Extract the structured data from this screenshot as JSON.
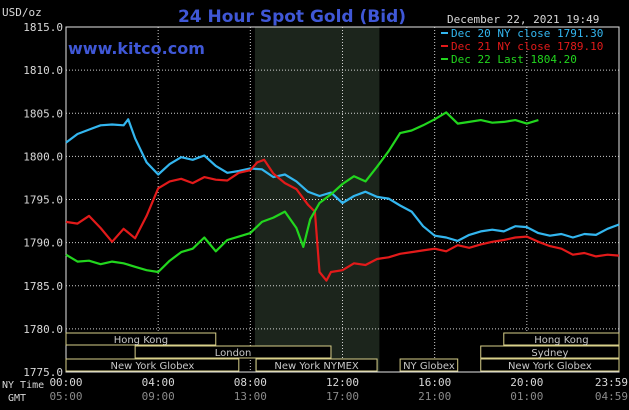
{
  "header": {
    "unit_label": "USD/oz",
    "title": "24 Hour Spot Gold (Bid)",
    "timestamp": "December 22, 2021 19:49",
    "site": "www.kitco.com"
  },
  "colors": {
    "background": "#000000",
    "title": "#3f57d6",
    "site": "#3f57d6",
    "text": "#d8d8d8",
    "grid": "#e6e6e6",
    "shade": "#1c251c",
    "session_box": "#d9d08a",
    "session_text": "#c8c8c8"
  },
  "legend": [
    {
      "label": "Dec 20 NY close 1791.30",
      "color": "#33b6ef"
    },
    {
      "label": "Dec 21 NY close 1789.10",
      "color": "#e21a1a"
    },
    {
      "label": "Dec 22 Last 1804.20",
      "color": "#22d61e"
    }
  ],
  "axis_labels": {
    "ny_time": "NY Time",
    "gmt": "GMT"
  },
  "sessions": [
    {
      "label": "Hong Kong",
      "start": -1,
      "end": 6.5,
      "row": 0
    },
    {
      "label": "London",
      "start": 3,
      "end": 11.5,
      "row": 1
    },
    {
      "label": "New York Globex",
      "start": -1,
      "end": 7.5,
      "row": 2
    },
    {
      "label": "New York NYMEX",
      "start": 8.25,
      "end": 13.5,
      "row": 2
    },
    {
      "label": "NY Globex",
      "start": 14.5,
      "end": 17,
      "row": 2
    },
    {
      "label": "Hong Kong",
      "start": 19,
      "end": 24.5,
      "row": 0
    },
    {
      "label": "Sydney",
      "start": 18,
      "end": 24.5,
      "row": 1
    },
    {
      "label": "New York Globex",
      "start": 18,
      "end": 24.5,
      "row": 2
    }
  ],
  "chart_data": {
    "type": "line",
    "title": "24 Hour Spot Gold (Bid)",
    "ylabel": "USD/oz",
    "xlim": [
      0,
      24
    ],
    "ylim": [
      1775,
      1815
    ],
    "shaded_range": [
      8.2,
      13.6
    ],
    "x_ticks": [
      {
        "x": 0,
        "ny": "00:00",
        "gmt": "05:00"
      },
      {
        "x": 4,
        "ny": "04:00",
        "gmt": "09:00"
      },
      {
        "x": 8,
        "ny": "08:00",
        "gmt": "13:00"
      },
      {
        "x": 12,
        "ny": "12:00",
        "gmt": "17:00"
      },
      {
        "x": 16,
        "ny": "16:00",
        "gmt": "21:00"
      },
      {
        "x": 20,
        "ny": "20:00",
        "gmt": "01:00"
      },
      {
        "x": 24,
        "ny": "23:59",
        "gmt": "04:59"
      }
    ],
    "y_ticks": [
      "1775.0",
      "1780.0",
      "1785.0",
      "1790.0",
      "1795.0",
      "1800.0",
      "1805.0",
      "1810.0",
      "1815.0"
    ],
    "series": [
      {
        "name": "Dec 20 NY close 1791.30",
        "color": "#33b6ef",
        "points": [
          [
            0,
            1801.6
          ],
          [
            0.5,
            1802.6
          ],
          [
            1,
            1803.1
          ],
          [
            1.5,
            1803.6
          ],
          [
            2,
            1803.7
          ],
          [
            2.5,
            1803.6
          ],
          [
            2.7,
            1804.3
          ],
          [
            3,
            1802.1
          ],
          [
            3.5,
            1799.3
          ],
          [
            4,
            1797.9
          ],
          [
            4.5,
            1799.1
          ],
          [
            5,
            1799.9
          ],
          [
            5.5,
            1799.6
          ],
          [
            6,
            1800.1
          ],
          [
            6.5,
            1798.9
          ],
          [
            7,
            1798.1
          ],
          [
            7.5,
            1798.3
          ],
          [
            8,
            1798.6
          ],
          [
            8.5,
            1798.5
          ],
          [
            9,
            1797.6
          ],
          [
            9.5,
            1797.9
          ],
          [
            10,
            1797.1
          ],
          [
            10.5,
            1795.9
          ],
          [
            11,
            1795.4
          ],
          [
            11.5,
            1795.8
          ],
          [
            12,
            1794.6
          ],
          [
            12.5,
            1795.4
          ],
          [
            13,
            1795.9
          ],
          [
            13.5,
            1795.3
          ],
          [
            14,
            1795.1
          ],
          [
            14.5,
            1794.3
          ],
          [
            15,
            1793.6
          ],
          [
            15.5,
            1791.9
          ],
          [
            16,
            1790.8
          ],
          [
            16.5,
            1790.6
          ],
          [
            17,
            1790.2
          ],
          [
            17.5,
            1790.9
          ],
          [
            18,
            1791.3
          ],
          [
            18.5,
            1791.5
          ],
          [
            19,
            1791.3
          ],
          [
            19.5,
            1791.9
          ],
          [
            20,
            1791.8
          ],
          [
            20.5,
            1791.1
          ],
          [
            21,
            1790.8
          ],
          [
            21.5,
            1791.0
          ],
          [
            22,
            1790.6
          ],
          [
            22.5,
            1791.0
          ],
          [
            23,
            1790.9
          ],
          [
            23.5,
            1791.6
          ],
          [
            24,
            1792.1
          ]
        ]
      },
      {
        "name": "Dec 21 NY close 1789.10",
        "color": "#e21a1a",
        "points": [
          [
            0,
            1792.4
          ],
          [
            0.5,
            1792.2
          ],
          [
            1,
            1793.1
          ],
          [
            1.5,
            1791.7
          ],
          [
            2,
            1790.1
          ],
          [
            2.5,
            1791.6
          ],
          [
            3,
            1790.5
          ],
          [
            3.5,
            1793.1
          ],
          [
            4,
            1796.3
          ],
          [
            4.5,
            1797.1
          ],
          [
            5,
            1797.4
          ],
          [
            5.5,
            1796.9
          ],
          [
            6,
            1797.6
          ],
          [
            6.5,
            1797.3
          ],
          [
            7,
            1797.2
          ],
          [
            7.5,
            1798.1
          ],
          [
            8,
            1798.4
          ],
          [
            8.3,
            1799.3
          ],
          [
            8.6,
            1799.6
          ],
          [
            9,
            1798.0
          ],
          [
            9.5,
            1796.9
          ],
          [
            10,
            1796.2
          ],
          [
            10.5,
            1794.4
          ],
          [
            10.8,
            1793.6
          ],
          [
            11,
            1786.6
          ],
          [
            11.3,
            1785.6
          ],
          [
            11.5,
            1786.6
          ],
          [
            12,
            1786.8
          ],
          [
            12.5,
            1787.6
          ],
          [
            13,
            1787.4
          ],
          [
            13.5,
            1788.1
          ],
          [
            14,
            1788.3
          ],
          [
            14.5,
            1788.7
          ],
          [
            15,
            1788.9
          ],
          [
            15.5,
            1789.1
          ],
          [
            16,
            1789.3
          ],
          [
            16.5,
            1789.0
          ],
          [
            17,
            1789.7
          ],
          [
            17.5,
            1789.4
          ],
          [
            18,
            1789.8
          ],
          [
            18.5,
            1790.1
          ],
          [
            19,
            1790.3
          ],
          [
            19.5,
            1790.6
          ],
          [
            20,
            1790.7
          ],
          [
            20.5,
            1790.1
          ],
          [
            21,
            1789.6
          ],
          [
            21.5,
            1789.3
          ],
          [
            22,
            1788.6
          ],
          [
            22.5,
            1788.8
          ],
          [
            23,
            1788.4
          ],
          [
            23.5,
            1788.6
          ],
          [
            24,
            1788.5
          ]
        ]
      },
      {
        "name": "Dec 22 Last 1804.20",
        "color": "#22d61e",
        "points": [
          [
            0,
            1788.6
          ],
          [
            0.5,
            1787.8
          ],
          [
            1,
            1787.9
          ],
          [
            1.5,
            1787.5
          ],
          [
            2,
            1787.8
          ],
          [
            2.5,
            1787.6
          ],
          [
            3,
            1787.2
          ],
          [
            3.5,
            1786.8
          ],
          [
            4,
            1786.6
          ],
          [
            4.5,
            1787.9
          ],
          [
            5,
            1788.9
          ],
          [
            5.5,
            1789.3
          ],
          [
            6,
            1790.6
          ],
          [
            6.5,
            1789.0
          ],
          [
            7,
            1790.3
          ],
          [
            7.5,
            1790.7
          ],
          [
            8,
            1791.1
          ],
          [
            8.5,
            1792.4
          ],
          [
            9,
            1792.9
          ],
          [
            9.5,
            1793.6
          ],
          [
            10,
            1791.7
          ],
          [
            10.3,
            1789.5
          ],
          [
            10.6,
            1792.7
          ],
          [
            11,
            1794.6
          ],
          [
            11.5,
            1795.6
          ],
          [
            12,
            1796.8
          ],
          [
            12.5,
            1797.7
          ],
          [
            13,
            1797.1
          ],
          [
            13.5,
            1798.8
          ],
          [
            14,
            1800.6
          ],
          [
            14.5,
            1802.7
          ],
          [
            15,
            1803.0
          ],
          [
            15.5,
            1803.6
          ],
          [
            16,
            1804.3
          ],
          [
            16.5,
            1805.1
          ],
          [
            17,
            1803.8
          ],
          [
            17.5,
            1804.0
          ],
          [
            18,
            1804.2
          ],
          [
            18.5,
            1803.9
          ],
          [
            19,
            1804.0
          ],
          [
            19.5,
            1804.2
          ],
          [
            20,
            1803.8
          ],
          [
            20.5,
            1804.2
          ]
        ]
      }
    ]
  }
}
